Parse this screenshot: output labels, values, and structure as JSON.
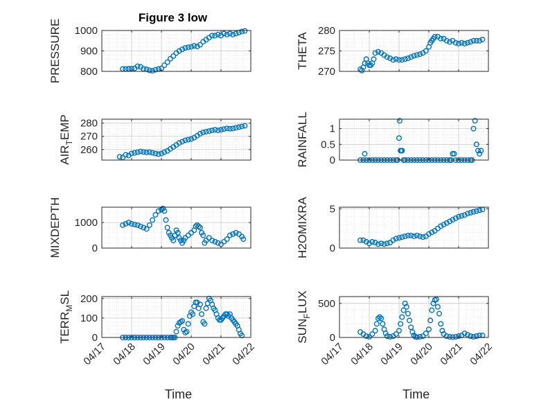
{
  "figure_title": "Figure 3 low",
  "x_tick_labels": [
    "04/17",
    "04/18",
    "04/19",
    "04/20",
    "04/21",
    "04/22"
  ],
  "x_label": "Time",
  "chart_data": [
    {
      "type": "scatter",
      "title": "Figure 3 low",
      "ylabel": "PRESSURE",
      "ylim": [
        800,
        1000
      ],
      "yticks": [
        800,
        900,
        1000
      ],
      "xlabel": "",
      "grid": true,
      "marker_color": "#0072bd",
      "x": [
        17.7,
        17.8,
        17.9,
        18.0,
        18.1,
        18.2,
        18.3,
        18.4,
        18.5,
        18.6,
        18.7,
        18.8,
        18.9,
        19.0,
        19.1,
        19.2,
        19.3,
        19.4,
        19.5,
        19.6,
        19.7,
        19.8,
        19.9,
        20.0,
        20.1,
        20.2,
        20.3,
        20.4,
        20.5,
        20.6,
        20.7,
        20.8,
        20.9,
        21.0,
        21.1,
        21.2,
        21.3,
        21.4,
        21.5,
        21.6,
        21.7,
        21.8
      ],
      "y": [
        812,
        812,
        813,
        813,
        815,
        825,
        822,
        812,
        810,
        805,
        803,
        808,
        812,
        815,
        830,
        845,
        862,
        875,
        890,
        900,
        908,
        915,
        918,
        920,
        925,
        922,
        930,
        945,
        955,
        965,
        975,
        975,
        980,
        975,
        985,
        980,
        985,
        980,
        985,
        990,
        995,
        998
      ]
    },
    {
      "type": "scatter",
      "ylabel": "THETA",
      "ylim": [
        270,
        280
      ],
      "yticks": [
        270,
        275,
        280
      ],
      "grid": true,
      "marker_color": "#0072bd",
      "x": [
        17.7,
        17.75,
        17.8,
        17.85,
        17.9,
        17.95,
        18.0,
        18.05,
        18.1,
        18.15,
        18.2,
        18.3,
        18.4,
        18.5,
        18.6,
        18.7,
        18.8,
        18.9,
        19.0,
        19.1,
        19.2,
        19.3,
        19.4,
        19.5,
        19.6,
        19.7,
        19.8,
        19.9,
        20.0,
        20.05,
        20.1,
        20.15,
        20.2,
        20.3,
        20.4,
        20.5,
        20.6,
        20.7,
        20.8,
        20.9,
        21.0,
        21.1,
        21.2,
        21.3,
        21.4,
        21.5,
        21.6,
        21.7,
        21.8
      ],
      "y": [
        270.5,
        270.2,
        271.0,
        272.0,
        273.0,
        272.0,
        271.5,
        271.5,
        272.0,
        273.0,
        274.5,
        274.8,
        274.5,
        274.0,
        273.5,
        273.2,
        272.8,
        273.0,
        272.8,
        272.8,
        273.0,
        273.2,
        273.5,
        273.8,
        274.0,
        274.2,
        274.5,
        275.0,
        276.0,
        277.0,
        277.5,
        278.0,
        278.5,
        278.5,
        278.0,
        278.0,
        277.5,
        277.2,
        277.5,
        277.0,
        276.8,
        277.0,
        276.8,
        277.0,
        277.2,
        277.5,
        277.5,
        277.5,
        277.8
      ]
    },
    {
      "type": "scatter",
      "ylabel": "AIR_TEMP",
      "ylabel_main": "AIR",
      "ylabel_sub": "T",
      "ylabel_tail": "EMP",
      "ylim": [
        252,
        283
      ],
      "yticks": [
        260,
        270,
        280
      ],
      "grid": true,
      "marker_color": "#0072bd",
      "x": [
        17.6,
        17.7,
        17.8,
        17.9,
        18.0,
        18.1,
        18.2,
        18.3,
        18.4,
        18.5,
        18.6,
        18.7,
        18.8,
        18.9,
        19.0,
        19.1,
        19.2,
        19.3,
        19.4,
        19.5,
        19.6,
        19.7,
        19.8,
        19.9,
        20.0,
        20.1,
        20.2,
        20.3,
        20.4,
        20.5,
        20.6,
        20.7,
        20.8,
        20.9,
        21.0,
        21.1,
        21.2,
        21.3,
        21.4,
        21.5,
        21.6,
        21.7,
        21.8
      ],
      "y": [
        254.5,
        254.0,
        256.0,
        255.5,
        257.0,
        257.5,
        258.0,
        258.5,
        258.2,
        257.8,
        258.0,
        257.5,
        257.0,
        256.5,
        257.0,
        258.0,
        259.0,
        260.5,
        262.0,
        263.5,
        265.0,
        266.0,
        267.0,
        267.5,
        268.0,
        269.0,
        270.5,
        272.0,
        273.0,
        273.5,
        274.0,
        274.5,
        275.0,
        274.5,
        275.0,
        275.5,
        276.0,
        275.8,
        276.0,
        276.5,
        277.0,
        277.5,
        278.0
      ]
    },
    {
      "type": "scatter",
      "ylabel": "RAINFALL",
      "ylim": [
        0,
        1.3
      ],
      "yticks": [
        0,
        0.5,
        1
      ],
      "grid": true,
      "marker_color": "#0072bd",
      "x": [
        17.7,
        17.8,
        17.85,
        17.9,
        18.0,
        18.1,
        18.2,
        18.3,
        18.4,
        18.5,
        18.6,
        18.7,
        18.8,
        18.9,
        18.95,
        19.0,
        19.02,
        19.05,
        19.08,
        19.1,
        19.15,
        19.2,
        19.3,
        19.4,
        19.5,
        19.6,
        19.7,
        19.8,
        19.9,
        20.0,
        20.1,
        20.2,
        20.3,
        20.4,
        20.5,
        20.6,
        20.7,
        20.75,
        20.8,
        20.85,
        20.9,
        21.0,
        21.1,
        21.2,
        21.3,
        21.4,
        21.45,
        21.5,
        21.55,
        21.6,
        21.65,
        21.7,
        21.75
      ],
      "y": [
        0,
        0,
        0.2,
        0,
        0,
        0,
        0,
        0,
        0,
        0,
        0,
        0,
        0,
        0,
        0,
        0.7,
        1.25,
        0.3,
        0.3,
        0.3,
        0,
        0,
        0,
        0,
        0,
        0,
        0,
        0,
        0,
        0,
        0,
        0,
        0,
        0,
        0,
        0,
        0,
        0,
        0.2,
        0.2,
        0,
        0,
        0,
        0,
        0,
        0,
        0,
        1.0,
        1.25,
        0.5,
        0.3,
        0.2,
        0.3
      ]
    },
    {
      "type": "scatter",
      "ylabel": "MIXDEPTH",
      "ylim": [
        0,
        1600
      ],
      "yticks": [
        0,
        1000
      ],
      "grid": true,
      "marker_color": "#0072bd",
      "x": [
        17.7,
        17.8,
        17.9,
        18.0,
        18.1,
        18.2,
        18.3,
        18.4,
        18.5,
        18.6,
        18.7,
        18.8,
        18.9,
        19.0,
        19.05,
        19.1,
        19.15,
        19.2,
        19.25,
        19.3,
        19.35,
        19.4,
        19.45,
        19.5,
        19.55,
        19.6,
        19.65,
        19.7,
        19.75,
        19.8,
        19.9,
        20.0,
        20.1,
        20.15,
        20.2,
        20.25,
        20.3,
        20.35,
        20.4,
        20.45,
        20.5,
        20.6,
        20.7,
        20.8,
        20.9,
        21.0,
        21.1,
        21.2,
        21.3,
        21.4,
        21.5,
        21.6,
        21.7,
        21.75
      ],
      "y": [
        900,
        950,
        1000,
        950,
        920,
        900,
        850,
        800,
        750,
        900,
        1100,
        1300,
        1450,
        1500,
        1550,
        1450,
        1100,
        800,
        600,
        500,
        400,
        300,
        500,
        700,
        600,
        400,
        300,
        200,
        300,
        400,
        500,
        600,
        700,
        850,
        900,
        850,
        800,
        600,
        500,
        200,
        300,
        400,
        300,
        250,
        200,
        150,
        250,
        350,
        500,
        550,
        600,
        550,
        450,
        350
      ]
    },
    {
      "type": "scatter",
      "ylabel": "H2OMIXRA",
      "ylim": [
        0,
        5.2
      ],
      "yticks": [
        0,
        5
      ],
      "grid": true,
      "marker_color": "#0072bd",
      "x": [
        17.7,
        17.8,
        17.9,
        18.0,
        18.1,
        18.2,
        18.3,
        18.4,
        18.5,
        18.6,
        18.7,
        18.8,
        18.9,
        19.0,
        19.1,
        19.2,
        19.3,
        19.4,
        19.5,
        19.6,
        19.7,
        19.8,
        19.9,
        20.0,
        20.1,
        20.2,
        20.3,
        20.4,
        20.5,
        20.6,
        20.7,
        20.8,
        20.9,
        21.0,
        21.1,
        21.2,
        21.3,
        21.4,
        21.5,
        21.6,
        21.7,
        21.8
      ],
      "y": [
        1.0,
        1.0,
        0.8,
        0.6,
        0.8,
        0.7,
        0.5,
        0.6,
        0.5,
        0.6,
        0.7,
        1.0,
        1.2,
        1.3,
        1.4,
        1.5,
        1.6,
        1.6,
        1.5,
        1.6,
        1.5,
        1.4,
        1.5,
        1.8,
        2.0,
        2.2,
        2.5,
        2.8,
        3.0,
        3.2,
        3.4,
        3.6,
        3.8,
        4.0,
        4.1,
        4.2,
        4.4,
        4.5,
        4.6,
        4.7,
        4.8,
        4.9
      ]
    },
    {
      "type": "scatter",
      "ylabel": "TERR_MSL",
      "ylabel_main": "TERR",
      "ylabel_sub": "M",
      "ylabel_tail": "SL",
      "ylim": [
        0,
        210
      ],
      "yticks": [
        0,
        100,
        200
      ],
      "grid": true,
      "marker_color": "#0072bd",
      "x": [
        17.7,
        17.8,
        17.9,
        18.0,
        18.1,
        18.2,
        18.3,
        18.4,
        18.5,
        18.6,
        18.7,
        18.8,
        18.9,
        19.0,
        19.1,
        19.2,
        19.3,
        19.35,
        19.4,
        19.45,
        19.5,
        19.55,
        19.6,
        19.65,
        19.7,
        19.75,
        19.8,
        19.85,
        19.9,
        19.95,
        20.0,
        20.05,
        20.1,
        20.15,
        20.2,
        20.25,
        20.3,
        20.35,
        20.4,
        20.45,
        20.5,
        20.55,
        20.6,
        20.65,
        20.7,
        20.75,
        20.8,
        20.85,
        20.9,
        20.95,
        21.0,
        21.05,
        21.1,
        21.15,
        21.2,
        21.25,
        21.3,
        21.35,
        21.4,
        21.45,
        21.5,
        21.55,
        21.6,
        21.65,
        21.7
      ],
      "y": [
        0,
        0,
        0,
        0,
        0,
        0,
        0,
        0,
        0,
        0,
        0,
        0,
        0,
        0,
        0,
        0,
        0,
        0,
        0,
        0,
        30,
        60,
        75,
        80,
        85,
        40,
        25,
        30,
        70,
        110,
        130,
        120,
        160,
        180,
        180,
        150,
        170,
        120,
        80,
        70,
        150,
        175,
        200,
        190,
        170,
        150,
        140,
        120,
        100,
        90,
        90,
        100,
        110,
        120,
        120,
        110,
        120,
        100,
        90,
        80,
        70,
        60,
        40,
        20,
        10
      ]
    },
    {
      "type": "scatter",
      "ylabel": "SUN_FLUX",
      "ylabel_main": "SUN",
      "ylabel_sub": "F",
      "ylabel_tail": "LUX",
      "ylim": [
        0,
        600
      ],
      "yticks": [
        0,
        500
      ],
      "grid": true,
      "marker_color": "#0072bd",
      "x": [
        17.7,
        17.8,
        17.9,
        18.0,
        18.1,
        18.2,
        18.25,
        18.3,
        18.35,
        18.4,
        18.45,
        18.5,
        18.55,
        18.6,
        18.7,
        18.8,
        18.9,
        19.0,
        19.05,
        19.1,
        19.15,
        19.2,
        19.25,
        19.3,
        19.35,
        19.4,
        19.45,
        19.5,
        19.55,
        19.6,
        19.7,
        19.8,
        19.9,
        20.0,
        20.05,
        20.1,
        20.15,
        20.2,
        20.25,
        20.3,
        20.35,
        20.4,
        20.45,
        20.5,
        20.6,
        20.7,
        20.8,
        20.9,
        21.0,
        21.1,
        21.2,
        21.3,
        21.4,
        21.5,
        21.6,
        21.7,
        21.8
      ],
      "y": [
        80,
        50,
        20,
        10,
        50,
        100,
        200,
        280,
        300,
        280,
        200,
        120,
        60,
        20,
        10,
        20,
        50,
        100,
        200,
        300,
        400,
        500,
        450,
        350,
        250,
        150,
        80,
        30,
        10,
        5,
        10,
        20,
        60,
        120,
        250,
        400,
        500,
        550,
        560,
        450,
        350,
        200,
        100,
        50,
        20,
        10,
        5,
        10,
        20,
        30,
        60,
        40,
        20,
        10,
        20,
        30,
        30
      ]
    }
  ]
}
